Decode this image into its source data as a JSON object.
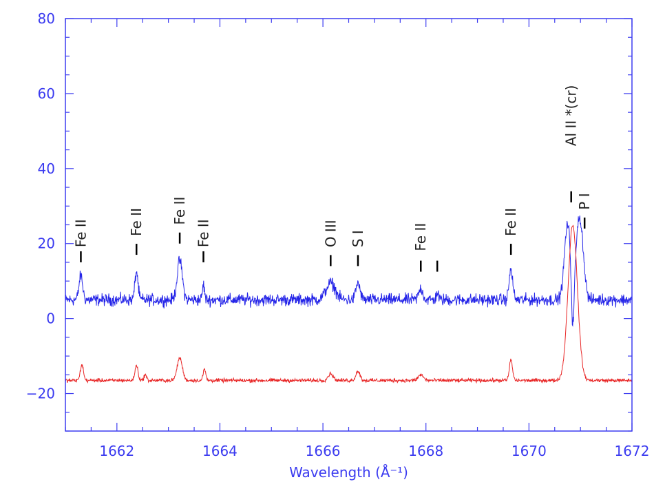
{
  "chart_data": {
    "type": "line",
    "title": "",
    "xlabel": "Wavelength (Å⁻¹)",
    "ylabel": "",
    "xlim": [
      1661,
      1672
    ],
    "ylim": [
      -30,
      80
    ],
    "x_ticks": [
      1662,
      1664,
      1666,
      1668,
      1670,
      1672
    ],
    "y_ticks": [
      -20,
      0,
      20,
      40,
      60,
      80
    ],
    "x_tick_labels": [
      "1662",
      "1664",
      "1666",
      "1668",
      "1670",
      "1672"
    ],
    "y_tick_labels": [
      "−20",
      "0",
      "20",
      "40",
      "60",
      "80"
    ],
    "grid": false,
    "legend": "none",
    "colors": {
      "axis": "#3b3bf0",
      "blue_series": "#2525e8",
      "red_series": "#e82525",
      "labels": "#222222"
    },
    "series": [
      {
        "color": "blue",
        "baseline": 5,
        "features": [
          {
            "x": 1661.3,
            "height": 6.5,
            "width": 0.035
          },
          {
            "x": 1662.38,
            "height": 7.5,
            "width": 0.03
          },
          {
            "x": 1663.22,
            "height": 10.5,
            "width": 0.05
          },
          {
            "x": 1663.68,
            "height": 4,
            "width": 0.02
          },
          {
            "x": 1666.15,
            "height": 4.5,
            "width": 0.09
          },
          {
            "x": 1666.68,
            "height": 4.5,
            "width": 0.04
          },
          {
            "x": 1667.9,
            "height": 3,
            "width": 0.04
          },
          {
            "x": 1668.22,
            "height": 2,
            "width": 0.02
          },
          {
            "x": 1669.65,
            "height": 8,
            "width": 0.035
          },
          {
            "x": 1670.75,
            "height": 20,
            "width": 0.06
          },
          {
            "x": 1670.97,
            "height": 20,
            "width": 0.06
          },
          {
            "x": 1671.05,
            "height": 6,
            "width": 0.05
          }
        ],
        "dips": [
          {
            "x": 1670.85,
            "depth": 14,
            "width": 0.025
          }
        ]
      },
      {
        "color": "red",
        "baseline": -16.5,
        "features": [
          {
            "x": 1661.32,
            "height": 4.2,
            "width": 0.03
          },
          {
            "x": 1662.38,
            "height": 4,
            "width": 0.03
          },
          {
            "x": 1662.55,
            "height": 1.5,
            "width": 0.025
          },
          {
            "x": 1663.22,
            "height": 6,
            "width": 0.05
          },
          {
            "x": 1663.7,
            "height": 3,
            "width": 0.025
          },
          {
            "x": 1666.15,
            "height": 1.8,
            "width": 0.05
          },
          {
            "x": 1666.68,
            "height": 2.5,
            "width": 0.04
          },
          {
            "x": 1667.9,
            "height": 1.5,
            "width": 0.05
          },
          {
            "x": 1669.65,
            "height": 5.5,
            "width": 0.03
          },
          {
            "x": 1670.85,
            "height": 41.5,
            "width": 0.09
          }
        ],
        "dips": []
      }
    ],
    "line_labels": [
      {
        "text": "Fe II",
        "x": 1661.3,
        "tick_y": 15,
        "label_y": 19
      },
      {
        "text": "Fe II",
        "x": 1662.38,
        "tick_y": 17,
        "label_y": 22
      },
      {
        "text": "Fe II",
        "x": 1663.22,
        "tick_y": 20,
        "label_y": 25
      },
      {
        "text": "Fe II",
        "x": 1663.68,
        "tick_y": 15,
        "label_y": 19
      },
      {
        "text": "O III",
        "x": 1666.15,
        "tick_y": 14,
        "label_y": 19
      },
      {
        "text": "S I",
        "x": 1666.68,
        "tick_y": 14,
        "label_y": 19
      },
      {
        "text": "Fe II",
        "x": 1667.9,
        "tick_y": 12.5,
        "label_y": 18
      },
      {
        "text": "",
        "x": 1668.22,
        "tick_y": 12.5,
        "label_y": 0
      },
      {
        "text": "Fe II",
        "x": 1669.65,
        "tick_y": 17,
        "label_y": 22
      },
      {
        "text": "Al II *(cr)",
        "x": 1670.82,
        "tick_y": 31,
        "label_y": 46
      },
      {
        "text": "P I",
        "x": 1671.08,
        "tick_y": 24,
        "label_y": 29
      }
    ]
  }
}
